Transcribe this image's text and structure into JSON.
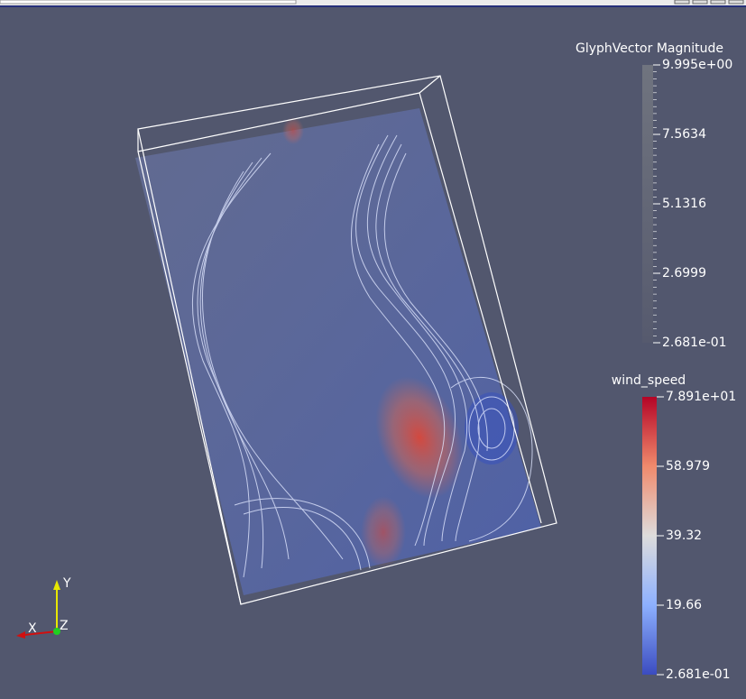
{
  "legends": [
    {
      "title": "GlyphVector Magnitude",
      "labels": [
        "9.995e+00",
        "7.5634",
        "5.1316",
        "2.6999",
        "2.681e-01"
      ]
    },
    {
      "title": "wind_speed",
      "labels": [
        "7.891e+01",
        "58.979",
        "39.32",
        "19.66",
        "2.681e-01"
      ]
    }
  ],
  "axes_triad": {
    "x": "X",
    "y": "Y",
    "z": "Z"
  }
}
